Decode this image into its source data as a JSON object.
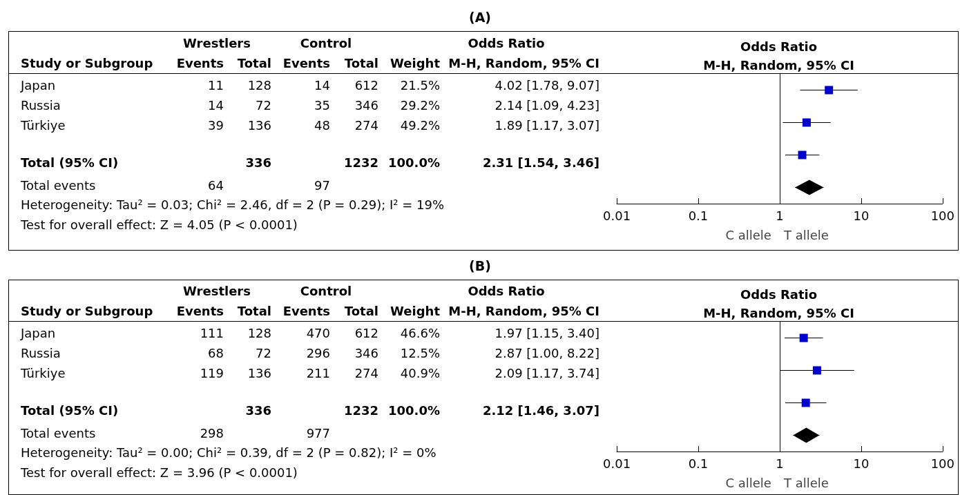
{
  "chart_data": [
    {
      "type": "other",
      "title": "(A)",
      "annotations": [
        "Wrestlers",
        "Control",
        "Odds Ratio",
        "Study or Subgroup",
        "Events",
        "Total",
        "Events",
        "Total",
        "Weight",
        "M-H, Random, 95% CI",
        "Japan",
        "11",
        "128",
        "14",
        "612",
        "21.5%",
        "4.02 [1.78, 9.07]",
        "Russia",
        "14",
        "72",
        "35",
        "346",
        "29.2%",
        "2.14 [1.09, 4.23]",
        "Türkiye",
        "39",
        "136",
        "48",
        "274",
        "49.2%",
        "1.89 [1.17, 3.07]",
        "Total (95% CI)",
        "336",
        "1232",
        "100.0%",
        "2.31 [1.54, 3.46]",
        "Total events",
        "64",
        "97",
        "Heterogeneity: Tau² = 0.03; Chi² = 2.46, df = 2 (P = 0.29); I² = 19%",
        "Test for overall effect: Z = 4.05 (P < 0.0001)"
      ]
    },
    {
      "type": "scatter",
      "title": "Odds Ratio",
      "subtitle": "M-H, Random, 95% CI",
      "categories": [
        null,
        null,
        null,
        null
      ],
      "orientation": "horizontal",
      "log": "x",
      "xlim": [
        0.01,
        100
      ],
      "xticks": [
        0.01,
        0.1,
        1,
        10,
        100
      ],
      "tick_labels": "x",
      "ref_lines": [
        {
          "axis": "x",
          "value": 1
        }
      ],
      "annotations": [
        "C allele",
        "T allele"
      ],
      "series": [
        {
          "marker": "square",
          "color": "#0000cc",
          "values": [
            4.02,
            2.14,
            1.89,
            null
          ],
          "errors": [
            [
              1.78,
              9.07
            ],
            [
              1.09,
              4.23
            ],
            [
              1.17,
              3.07
            ],
            null
          ]
        },
        {
          "marker": "diamond",
          "color": "#000000",
          "values": [
            null,
            null,
            null,
            2.31
          ],
          "errors": [
            null,
            null,
            null,
            [
              1.54,
              3.46
            ]
          ]
        }
      ]
    },
    {
      "type": "other",
      "title": "(B)",
      "annotations": [
        "Wrestlers",
        "Control",
        "Odds Ratio",
        "Study or Subgroup",
        "Events",
        "Total",
        "Events",
        "Total",
        "Weight",
        "M-H, Random, 95% CI",
        "Japan",
        "111",
        "128",
        "470",
        "612",
        "46.6%",
        "1.97 [1.15, 3.40]",
        "Russia",
        "68",
        "72",
        "296",
        "346",
        "12.5%",
        "2.87 [1.00, 8.22]",
        "Türkiye",
        "119",
        "136",
        "211",
        "274",
        "40.9%",
        "2.09 [1.17, 3.74]",
        "Total (95% CI)",
        "336",
        "1232",
        "100.0%",
        "2.12 [1.46, 3.07]",
        "Total events",
        "298",
        "977",
        "Heterogeneity: Tau² = 0.00; Chi² = 0.39, df = 2 (P = 0.82); I² = 0%",
        "Test for overall effect: Z = 3.96 (P < 0.0001)"
      ]
    },
    {
      "type": "scatter",
      "title": "Odds Ratio",
      "subtitle": "M-H, Random, 95% CI",
      "categories": [
        null,
        null,
        null,
        null
      ],
      "orientation": "horizontal",
      "log": "x",
      "xlim": [
        0.01,
        100
      ],
      "xticks": [
        0.01,
        0.1,
        1,
        10,
        100
      ],
      "tick_labels": "x",
      "ref_lines": [
        {
          "axis": "x",
          "value": 1
        }
      ],
      "annotations": [
        "C allele",
        "T allele"
      ],
      "series": [
        {
          "marker": "square",
          "color": "#0000cc",
          "values": [
            1.97,
            2.87,
            2.09,
            null
          ],
          "errors": [
            [
              1.15,
              3.4
            ],
            [
              1.0,
              8.22
            ],
            [
              1.17,
              3.74
            ],
            null
          ]
        },
        {
          "marker": "diamond",
          "color": "#000000",
          "values": [
            null,
            null,
            null,
            2.12
          ],
          "errors": [
            null,
            null,
            null,
            [
              1.46,
              3.07
            ]
          ]
        }
      ]
    }
  ]
}
